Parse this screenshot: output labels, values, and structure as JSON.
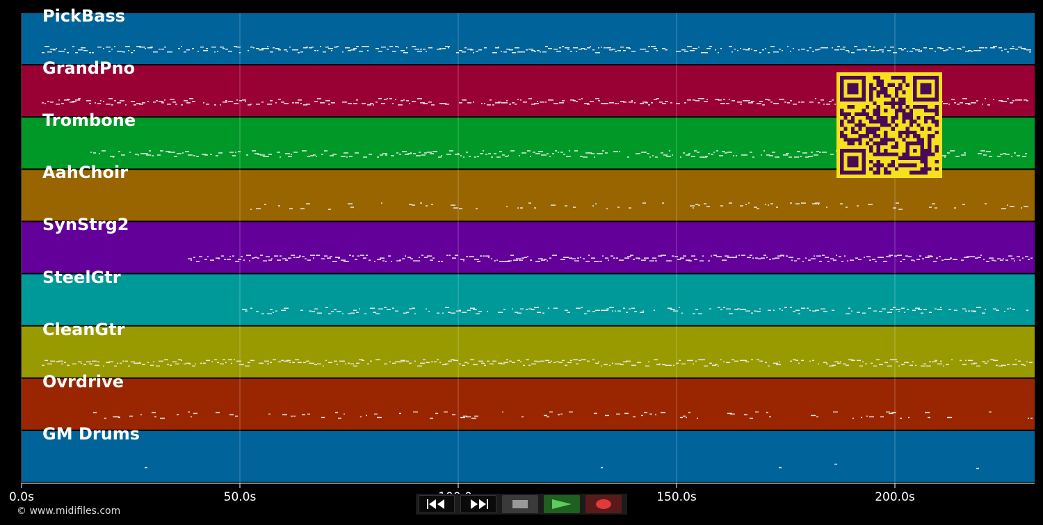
{
  "tracks": [
    {
      "name": "PickBass",
      "color": "#00639a"
    },
    {
      "name": "GrandPno",
      "color": "#990033"
    },
    {
      "name": "Trombone",
      "color": "#009928"
    },
    {
      "name": "AahChoir",
      "color": "#996500"
    },
    {
      "name": "SynStrg2",
      "color": "#620099"
    },
    {
      "name": "SteelGtr",
      "color": "#00999a"
    },
    {
      "name": "CleanGtr",
      "color": "#999a00"
    },
    {
      "name": "Ovrdrive",
      "color": "#992600"
    },
    {
      "name": "GM Drums",
      "color": "#00639a"
    }
  ],
  "timeline": {
    "ticks": [
      {
        "seconds": 0,
        "label": "0.0s"
      },
      {
        "seconds": 50,
        "label": "50.0s"
      },
      {
        "seconds": 100,
        "label": "100.0s"
      },
      {
        "seconds": 150,
        "label": "150.0s"
      },
      {
        "seconds": 200,
        "label": "200.0s"
      }
    ],
    "duration_seconds": 232
  },
  "copyright": "© www.midifiles.com",
  "transport": {
    "rewind": "rewind-icon",
    "fast_forward": "fast-forward-icon",
    "stop": "stop-icon",
    "play": "play-icon",
    "record": "record-icon"
  },
  "qr_code": {
    "color_fg": "#4a0a55",
    "color_bg": "#f6e11c"
  }
}
